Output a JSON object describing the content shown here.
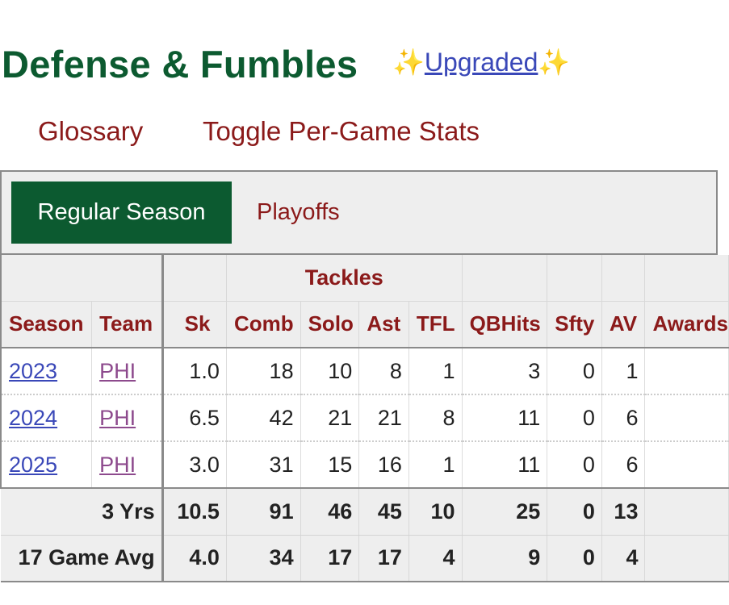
{
  "header": {
    "title": "Defense & Fumbles",
    "spark_left": "✨",
    "upgraded_link": "Upgraded",
    "spark_right": "✨"
  },
  "links": {
    "glossary": "Glossary",
    "toggle": "Toggle Per-Game Stats"
  },
  "tabs": {
    "active": "Regular Season",
    "inactive": "Playoffs"
  },
  "table": {
    "group_header": "Tackles",
    "columns": [
      "Season",
      "Team",
      "Sk",
      "Comb",
      "Solo",
      "Ast",
      "TFL",
      "QBHits",
      "Sfty",
      "AV",
      "Awards"
    ],
    "rows": [
      {
        "season": "2023",
        "team": "PHI",
        "sk": "1.0",
        "comb": "18",
        "solo": "10",
        "ast": "8",
        "tfl": "1",
        "qbhits": "3",
        "sfty": "0",
        "av": "1",
        "awards": ""
      },
      {
        "season": "2024",
        "team": "PHI",
        "sk": "6.5",
        "comb": "42",
        "solo": "21",
        "ast": "21",
        "tfl": "8",
        "qbhits": "11",
        "sfty": "0",
        "av": "6",
        "awards": ""
      },
      {
        "season": "2025",
        "team": "PHI",
        "sk": "3.0",
        "comb": "31",
        "solo": "15",
        "ast": "16",
        "tfl": "1",
        "qbhits": "11",
        "sfty": "0",
        "av": "6",
        "awards": ""
      }
    ],
    "summary": [
      {
        "label": "3 Yrs",
        "sk": "10.5",
        "comb": "91",
        "solo": "46",
        "ast": "45",
        "tfl": "10",
        "qbhits": "25",
        "sfty": "0",
        "av": "13",
        "awards": ""
      },
      {
        "label": "17 Game Avg",
        "sk": "4.0",
        "comb": "34",
        "solo": "17",
        "ast": "17",
        "tfl": "4",
        "qbhits": "9",
        "sfty": "0",
        "av": "4",
        "awards": ""
      }
    ]
  },
  "colors": {
    "brand_green": "#0c5a30",
    "link_red": "#8b1a1a",
    "link_blue": "#3a48b8",
    "link_purple": "#8d4a8d"
  }
}
